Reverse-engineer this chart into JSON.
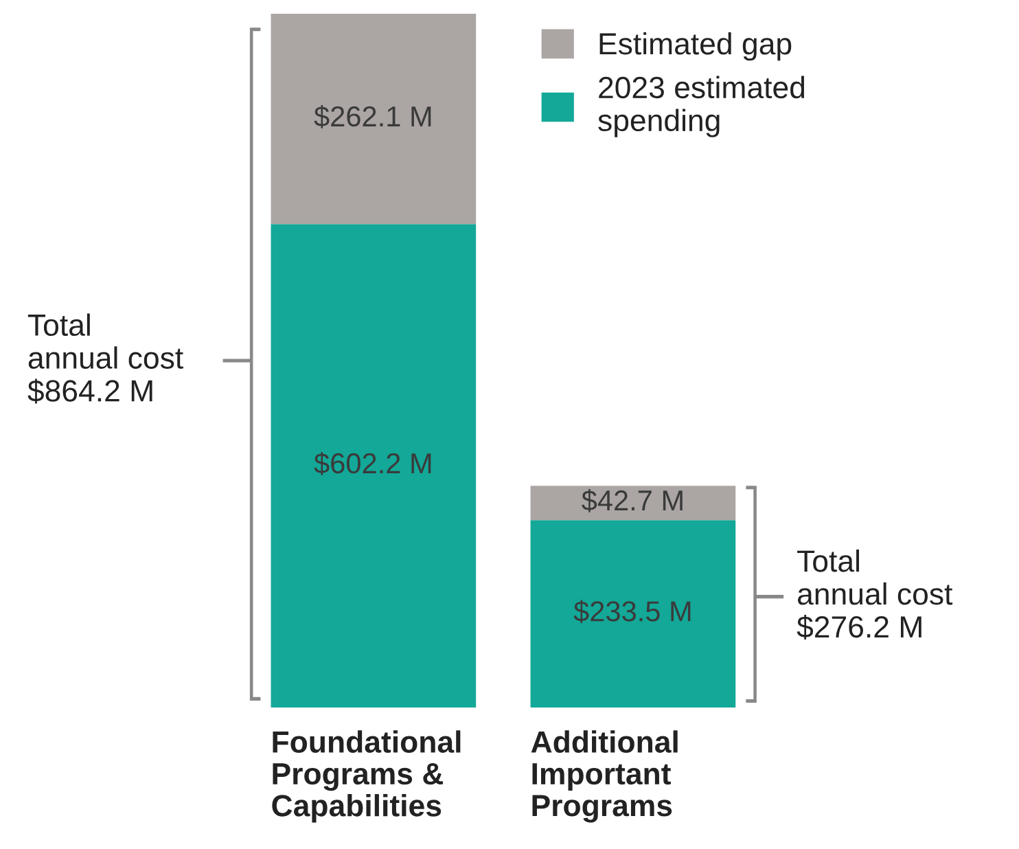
{
  "chart_data": {
    "type": "bar",
    "stacked": true,
    "categories": [
      "Foundational\nPrograms &\nCapabilities",
      "Additional\nImportant\nPrograms"
    ],
    "series": [
      {
        "name": "2023 estimated\nspending",
        "color": "#13a898",
        "values": [
          602.2,
          233.5
        ],
        "value_labels": [
          "$602.2 M",
          "$233.5 M"
        ]
      },
      {
        "name": "Estimated gap",
        "color": "#aba6a4",
        "values": [
          262.1,
          42.7
        ],
        "value_labels": [
          "$262.1 M",
          "$42.7 M"
        ]
      }
    ],
    "totals": [
      "Total\nannual cost\n$864.2 M",
      "Total\nannual cost\n$276.2 M"
    ],
    "legend": "top right",
    "grid": false
  }
}
